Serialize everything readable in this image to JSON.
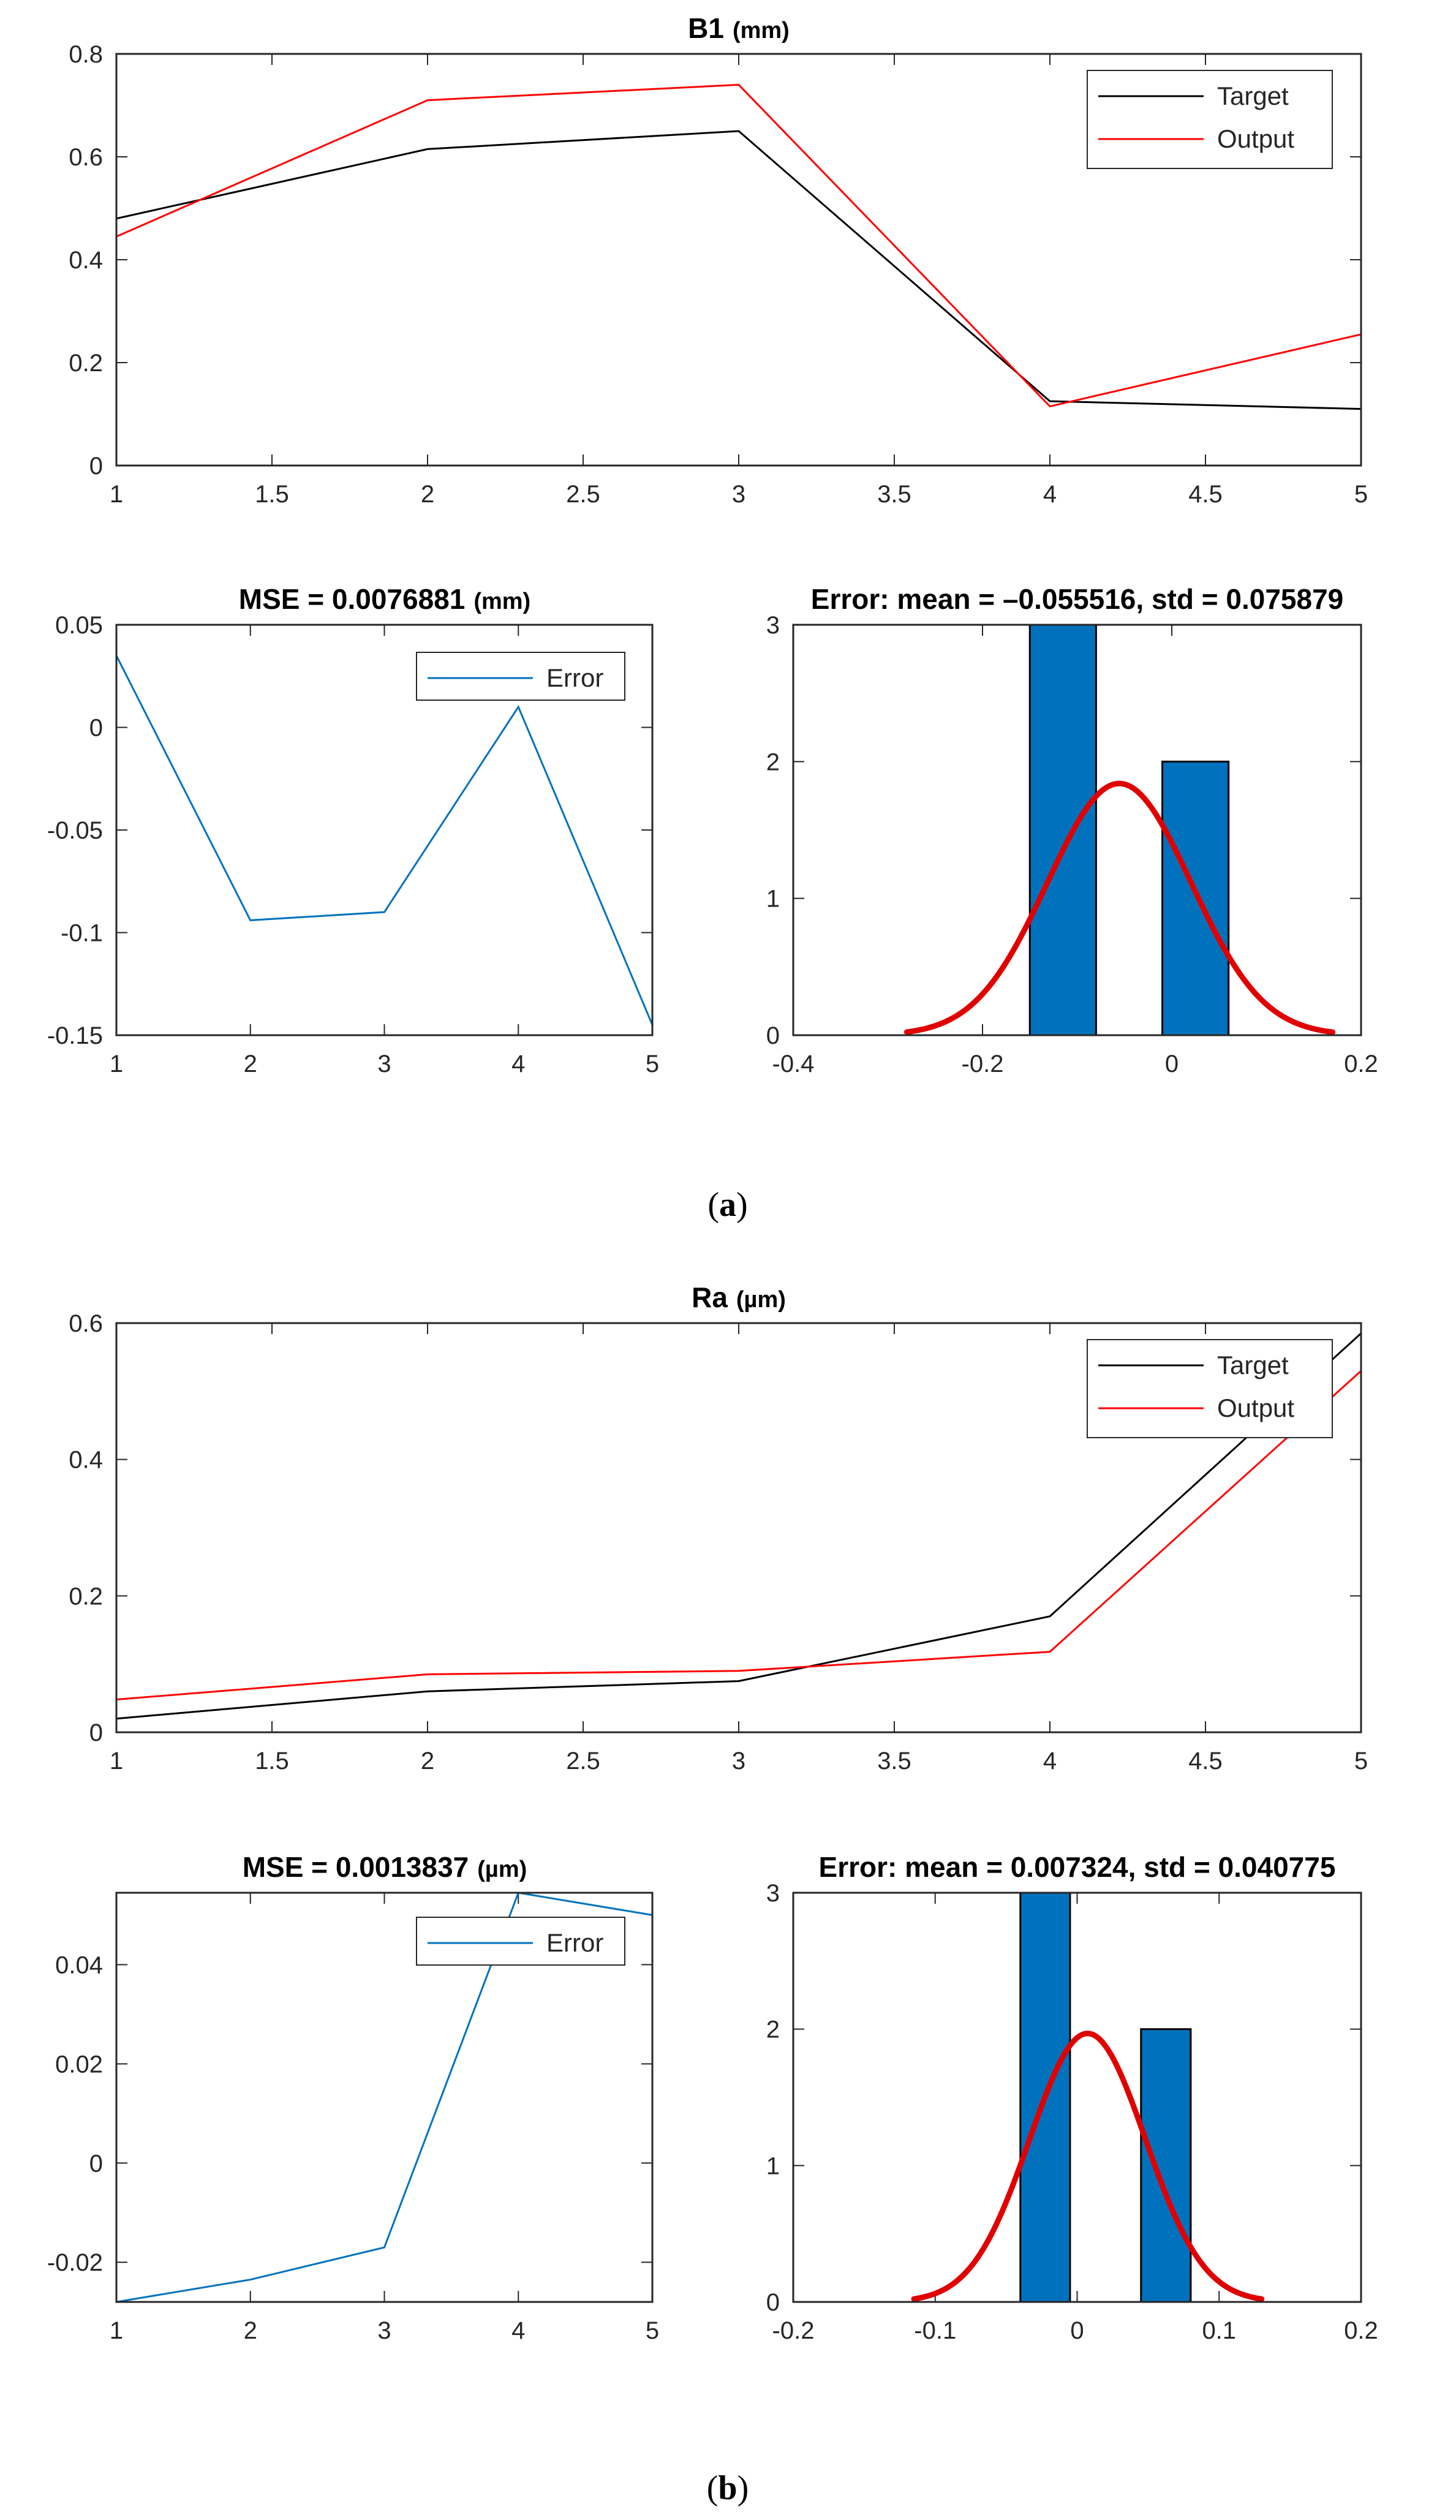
{
  "figure_captions": {
    "a": "a",
    "b": "b"
  },
  "chart_data": [
    {
      "id": "a-main",
      "type": "line",
      "title": "B1",
      "unit": "(mm)",
      "x": [
        1,
        2,
        3,
        4,
        5
      ],
      "series": [
        {
          "name": "Target",
          "color": "#000000",
          "values": [
            0.48,
            0.615,
            0.65,
            0.125,
            0.11
          ]
        },
        {
          "name": "Output",
          "color": "#ff0000",
          "values": [
            0.445,
            0.71,
            0.74,
            0.115,
            0.255
          ]
        }
      ],
      "xlim": [
        1,
        5
      ],
      "ylim": [
        0,
        0.8
      ],
      "xticks": [
        "1",
        "1.5",
        "2",
        "2.5",
        "3",
        "3.5",
        "4",
        "4.5",
        "5"
      ],
      "yticks": [
        "0",
        "0.2",
        "0.4",
        "0.6",
        "0.8"
      ],
      "legend": "top-right"
    },
    {
      "id": "a-error",
      "type": "line",
      "title": "MSE = 0.0076881",
      "unit": "(mm)",
      "x": [
        1,
        2,
        3,
        4,
        5
      ],
      "series": [
        {
          "name": "Error",
          "color": "#0072bd",
          "values": [
            0.035,
            -0.094,
            -0.09,
            0.01,
            -0.145
          ]
        }
      ],
      "xlim": [
        1,
        5
      ],
      "ylim": [
        -0.15,
        0.05
      ],
      "xticks": [
        "1",
        "2",
        "3",
        "4",
        "5"
      ],
      "yticks": [
        "-0.15",
        "-0.1",
        "-0.05",
        "0",
        "0.05"
      ],
      "legend": "top-right"
    },
    {
      "id": "a-hist",
      "type": "bar",
      "title": "Error: mean = –0.055516, std = 0.075879",
      "bars": [
        {
          "from": -0.15,
          "to": -0.08,
          "count": 3
        },
        {
          "from": -0.01,
          "to": 0.06,
          "count": 2
        }
      ],
      "bar_color": "#0072bd",
      "fit": {
        "type": "normal",
        "mean": -0.055516,
        "std": 0.075879,
        "from": -0.28,
        "to": 0.17,
        "color": "#e00000"
      },
      "xlim": [
        -0.4,
        0.2
      ],
      "ylim": [
        0,
        3
      ],
      "xticks": [
        "-0.4",
        "-0.2",
        "0",
        "0.2"
      ],
      "yticks": [
        "0",
        "1",
        "2",
        "3"
      ]
    },
    {
      "id": "b-main",
      "type": "line",
      "title": "Ra",
      "unit": "(µm)",
      "x": [
        1,
        2,
        3,
        4,
        5
      ],
      "series": [
        {
          "name": "Target",
          "color": "#000000",
          "values": [
            0.02,
            0.06,
            0.075,
            0.17,
            0.585
          ]
        },
        {
          "name": "Output",
          "color": "#ff0000",
          "values": [
            0.048,
            0.085,
            0.09,
            0.118,
            0.53
          ]
        }
      ],
      "xlim": [
        1,
        5
      ],
      "ylim": [
        0,
        0.6
      ],
      "xticks": [
        "1",
        "1.5",
        "2",
        "2.5",
        "3",
        "3.5",
        "4",
        "4.5",
        "5"
      ],
      "yticks": [
        "0",
        "0.2",
        "0.4",
        "0.6"
      ],
      "legend": "top-right"
    },
    {
      "id": "b-error",
      "type": "line",
      "title": "MSE = 0.0013837",
      "unit": "(µm)",
      "x": [
        1,
        2,
        3,
        4,
        5
      ],
      "series": [
        {
          "name": "Error",
          "color": "#0072bd",
          "values": [
            -0.028,
            -0.0235,
            -0.017,
            0.0545,
            0.05
          ]
        }
      ],
      "xlim": [
        1,
        5
      ],
      "ylim": [
        -0.028,
        0.0545
      ],
      "xticks": [
        "1",
        "2",
        "3",
        "4",
        "5"
      ],
      "yticks": [
        "-0.02",
        "0",
        "0.02",
        "0.04"
      ],
      "legend": "top-right"
    },
    {
      "id": "b-hist",
      "type": "bar",
      "title": "Error: mean = 0.007324, std = 0.040775",
      "bars": [
        {
          "from": -0.04,
          "to": -0.005,
          "count": 3
        },
        {
          "from": 0.045,
          "to": 0.08,
          "count": 2
        }
      ],
      "bar_color": "#0072bd",
      "fit": {
        "type": "normal",
        "mean": 0.007324,
        "std": 0.040775,
        "from": -0.115,
        "to": 0.13,
        "color": "#e00000"
      },
      "xlim": [
        -0.2,
        0.2
      ],
      "ylim": [
        0,
        3
      ],
      "xticks": [
        "-0.2",
        "-0.1",
        "0",
        "0.1",
        "0.2"
      ],
      "yticks": [
        "0",
        "1",
        "2",
        "3"
      ]
    }
  ]
}
